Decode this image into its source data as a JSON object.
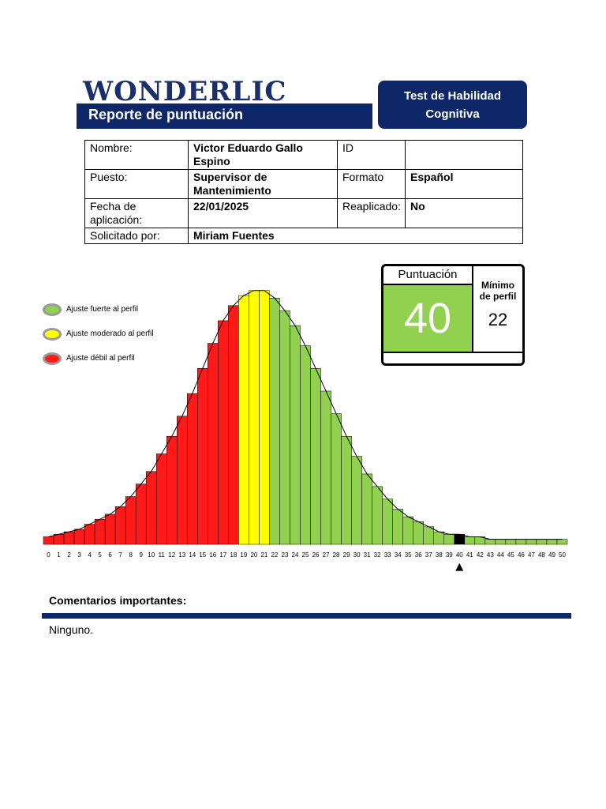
{
  "header": {
    "logo": "WONDERLIC",
    "report_title": "Reporte de puntuación",
    "test_title_line1": "Test de Habilidad",
    "test_title_line2": "Cognitiva"
  },
  "info": {
    "nombre_label": "Nombre:",
    "nombre_line1": "Victor Eduardo Gallo",
    "nombre_line2": "Espino",
    "id_label": "ID",
    "id_value": "",
    "puesto_label": "Puesto:",
    "puesto_line1": "Supervisor de",
    "puesto_line2": "Mantenimiento",
    "formato_label": "Formato",
    "formato_value": "Español",
    "fecha_label_line1": "Fecha de",
    "fecha_label_line2": "aplicación:",
    "fecha_value": "22/01/2025",
    "replicado_label": "Reaplicado:",
    "replicado_value": "No",
    "solicitado_label": "Solicitado por:",
    "solicitado_value": "Miriam Fuentes"
  },
  "legend": [
    {
      "label": "Ajuste fuerte al perfil",
      "color": "#92d050"
    },
    {
      "label": "Ajuste moderado al perfil",
      "color": "#ffff00"
    },
    {
      "label": "Ajuste débil al perfil",
      "color": "#ff1a1a"
    }
  ],
  "score": {
    "label": "Puntuación",
    "value": "40",
    "min_label_line1": "Mínimo",
    "min_label_line2": "de perfil",
    "min_value": "22"
  },
  "comments": {
    "title": "Comentarios importantes:",
    "text": "Ninguno."
  },
  "chart_data": {
    "type": "bar",
    "categories": [
      "0",
      "1",
      "2",
      "3",
      "4",
      "5",
      "6",
      "7",
      "8",
      "9",
      "10",
      "11",
      "12",
      "13",
      "14",
      "15",
      "16",
      "17",
      "18",
      "19",
      "20",
      "21",
      "22",
      "23",
      "24",
      "25",
      "26",
      "27",
      "28",
      "29",
      "30",
      "31",
      "32",
      "33",
      "34",
      "35",
      "36",
      "37",
      "38",
      "39",
      "40",
      "41",
      "42",
      "43",
      "44",
      "45",
      "46",
      "47",
      "48",
      "49",
      "50"
    ],
    "values": [
      3,
      4,
      5,
      6,
      8,
      10,
      12,
      15,
      19,
      24,
      29,
      36,
      43,
      51,
      60,
      70,
      80,
      89,
      95,
      99,
      101,
      101,
      98,
      93,
      87,
      79,
      70,
      61,
      52,
      43,
      35,
      28,
      23,
      18,
      14,
      11,
      9,
      7,
      5,
      4,
      4,
      3,
      3,
      2,
      2,
      2,
      2,
      2,
      2,
      2,
      2
    ],
    "ylim": [
      0,
      105
    ],
    "colors": {
      "weak": "#ff1a1a",
      "moderate": "#ffff00",
      "strong": "#92d050",
      "score": "#000000"
    },
    "moderate_range": [
      19,
      21
    ],
    "strong_from": 22,
    "score_index": 40,
    "marker_symbol": "▲"
  }
}
